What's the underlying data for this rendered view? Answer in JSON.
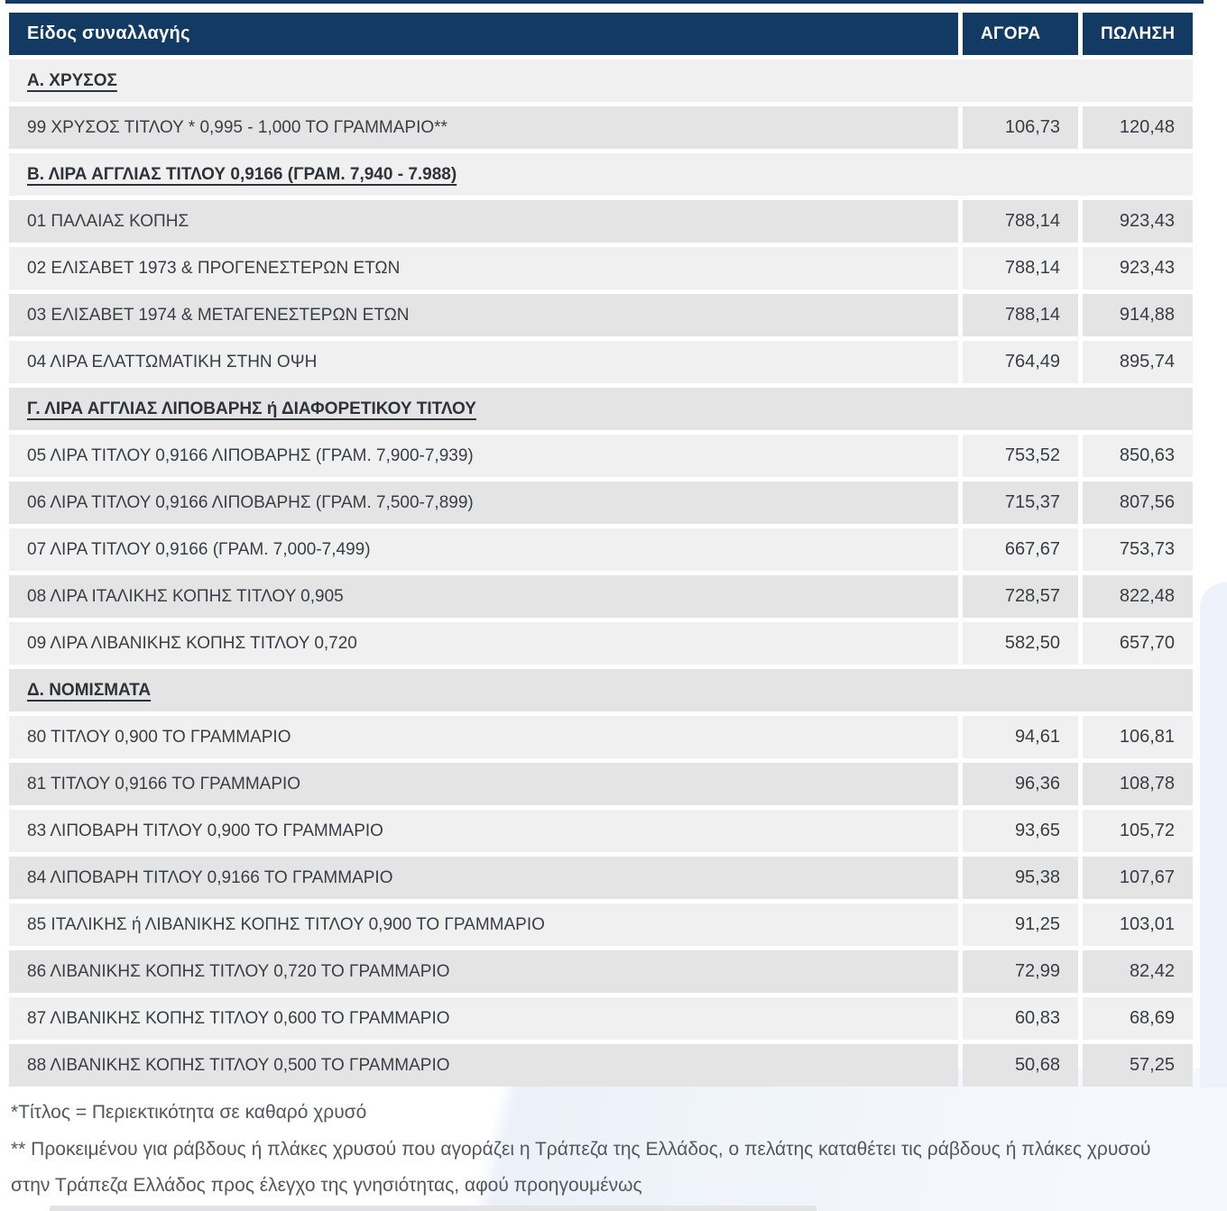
{
  "colors": {
    "header_navy": "#133a63",
    "row_light": "#f0f0f0",
    "row_dark": "#e4e4e4",
    "decor_blue": "#eef2fa"
  },
  "table": {
    "columns": [
      "Είδος συναλλαγής",
      "ΑΓΟΡΑ",
      "ΠΩΛΗΣΗ"
    ],
    "sections": [
      {
        "title": "Α. ΧΡΥΣΟΣ",
        "rows": [
          {
            "label": "99 ΧΡΥΣΟΣ ΤΙΤΛΟΥ * 0,995 - 1,000 ΤΟ ΓΡΑΜΜΑΡΙΟ**",
            "buy": "106,73",
            "sell": "120,48"
          }
        ]
      },
      {
        "title": "Β. ΛΙΡΑ ΑΓΓΛΙΑΣ ΤΙΤΛΟΥ 0,9166 (ΓΡΑΜ. 7,940 - 7.988)",
        "rows": [
          {
            "label": "01 ΠΑΛΑΙΑΣ ΚΟΠΗΣ",
            "buy": "788,14",
            "sell": "923,43"
          },
          {
            "label": "02 ΕΛΙΣΑΒΕΤ 1973 & ΠΡΟΓΕΝΕΣΤΕΡΩΝ ΕΤΩΝ",
            "buy": "788,14",
            "sell": "923,43"
          },
          {
            "label": "03 ΕΛΙΣΑΒΕΤ 1974 & ΜΕΤΑΓΕΝΕΣΤΕΡΩΝ ΕΤΩΝ",
            "buy": "788,14",
            "sell": "914,88"
          },
          {
            "label": "04 ΛΙΡΑ ΕΛΑΤΤΩΜΑΤΙΚΗ ΣΤΗΝ ΟΨΗ",
            "buy": "764,49",
            "sell": "895,74"
          }
        ]
      },
      {
        "title": "Γ. ΛΙΡΑ ΑΓΓΛΙΑΣ ΛΙΠΟΒΑΡΗΣ ή ΔΙΑΦΟΡΕΤΙΚΟΥ ΤΙΤΛΟΥ",
        "rows": [
          {
            "label": "05 ΛΙΡΑ ΤΙΤΛΟΥ 0,9166 ΛΙΠΟΒΑΡΗΣ (ΓΡΑΜ. 7,900-7,939)",
            "buy": "753,52",
            "sell": "850,63"
          },
          {
            "label": "06 ΛΙΡΑ ΤΙΤΛΟΥ 0,9166 ΛΙΠΟΒΑΡΗΣ (ΓΡΑΜ. 7,500-7,899)",
            "buy": "715,37",
            "sell": "807,56"
          },
          {
            "label": "07 ΛΙΡΑ ΤΙΤΛΟΥ 0,9166 (ΓΡΑΜ. 7,000-7,499)",
            "buy": "667,67",
            "sell": "753,73"
          },
          {
            "label": "08 ΛΙΡΑ ΙΤΑΛΙΚΗΣ ΚΟΠΗΣ ΤΙΤΛΟΥ 0,905",
            "buy": "728,57",
            "sell": "822,48"
          },
          {
            "label": "09 ΛΙΡΑ ΛΙΒΑΝΙΚΗΣ ΚΟΠΗΣ ΤΙΤΛΟΥ 0,720",
            "buy": "582,50",
            "sell": "657,70"
          }
        ]
      },
      {
        "title": "Δ. ΝΟΜΙΣΜΑΤΑ",
        "rows": [
          {
            "label": "80 ΤΙΤΛΟΥ 0,900 ΤΟ ΓΡΑΜΜΑΡΙΟ",
            "buy": "94,61",
            "sell": "106,81"
          },
          {
            "label": "81 ΤΙΤΛΟΥ 0,9166 ΤΟ ΓΡΑΜΜΑΡΙΟ",
            "buy": "96,36",
            "sell": "108,78"
          },
          {
            "label": "83 ΛΙΠΟΒΑΡΗ ΤΙΤΛΟΥ 0,900 ΤΟ ΓΡΑΜΜΑΡΙΟ",
            "buy": "93,65",
            "sell": "105,72"
          },
          {
            "label": "84 ΛΙΠΟΒΑΡΗ ΤΙΤΛΟΥ 0,9166 ΤΟ ΓΡΑΜΜΑΡΙΟ",
            "buy": "95,38",
            "sell": "107,67"
          },
          {
            "label": "85 ΙΤΑΛΙΚΗΣ ή ΛΙΒΑΝΙΚΗΣ ΚΟΠΗΣ ΤΙΤΛΟΥ 0,900 ΤΟ ΓΡΑΜΜΑΡΙΟ",
            "buy": "91,25",
            "sell": "103,01"
          },
          {
            "label": "86 ΛΙΒΑΝΙΚΗΣ ΚΟΠΗΣ ΤΙΤΛΟΥ 0,720 ΤΟ ΓΡΑΜΜΑΡΙΟ",
            "buy": "72,99",
            "sell": "82,42"
          },
          {
            "label": "87 ΛΙΒΑΝΙΚΗΣ ΚΟΠΗΣ ΤΙΤΛΟΥ 0,600 ΤΟ ΓΡΑΜΜΑΡΙΟ",
            "buy": "60,83",
            "sell": "68,69"
          },
          {
            "label": "88 ΛΙΒΑΝΙΚΗΣ ΚΟΠΗΣ ΤΙΤΛΟΥ 0,500 ΤΟ ΓΡΑΜΜΑΡΙΟ",
            "buy": "50,68",
            "sell": "57,25"
          }
        ]
      }
    ]
  },
  "footnotes": [
    "*Τίτλος = Περιεκτικότητα σε καθαρό χρυσό",
    "** Προκειμένου για ράβδους ή πλάκες χρυσού που αγοράζει η Τράπεζα της Ελλάδος, ο πελάτης καταθέτει τις ράβδους ή πλάκες χρυσού στην Τράπεζα Ελλάδος προς έλεγχο της γνησιότητας, αφού προηγουμένως"
  ]
}
